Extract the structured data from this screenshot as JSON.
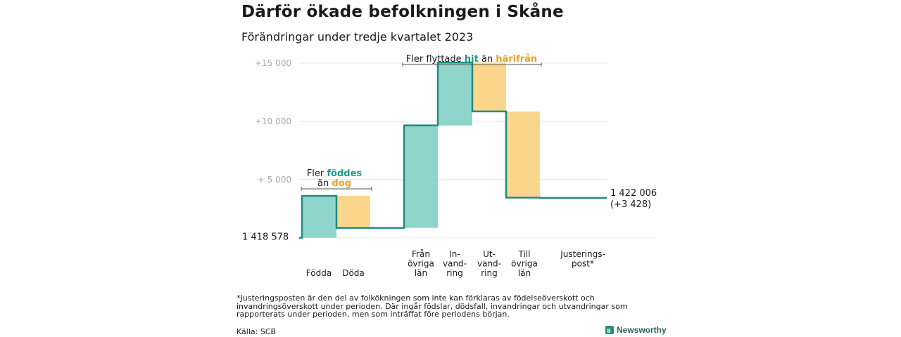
{
  "title": "Därför ökade befolkningen i Skåne",
  "subtitle": "Förändringar under tredje kvartalet 2023",
  "chart_data": {
    "type": "waterfall",
    "start_value": 1418578,
    "start_label": "1  418   578",
    "end_label": "1 422 006",
    "end_change_label": "(+3 428)",
    "y_ticks": [
      {
        "value": 5000,
        "label": "+  5  000"
      },
      {
        "value": 10000,
        "label": "+10   000"
      },
      {
        "value": 15000,
        "label": "+15   000"
      }
    ],
    "ylim": [
      -800,
      15600
    ],
    "steps": [
      {
        "label_lines": [
          "Födda"
        ],
        "delta": 3600,
        "kind": "inflow"
      },
      {
        "label_lines": [
          "Döda"
        ],
        "delta": -2750,
        "kind": "outflow"
      },
      {
        "label_lines": [
          "Från",
          "övriga",
          "län"
        ],
        "delta": 8800,
        "kind": "inflow"
      },
      {
        "label_lines": [
          "In-",
          "vand-",
          "ring"
        ],
        "delta": 5400,
        "kind": "inflow"
      },
      {
        "label_lines": [
          "Ut-",
          "vand-",
          "ring"
        ],
        "delta": -4200,
        "kind": "outflow"
      },
      {
        "label_lines": [
          "Till",
          "övriga",
          "län"
        ],
        "delta": -7400,
        "kind": "outflow"
      },
      {
        "label_lines": [
          "Justerings-",
          "post*"
        ],
        "delta": -22,
        "kind": "adjustment"
      }
    ],
    "annotations": {
      "births": {
        "prefix": "Fler ",
        "hl1": "föddes",
        "mid": "än ",
        "hl2": "dog"
      },
      "migration": {
        "prefix": "Fler flyttade ",
        "hl1": "hit",
        "mid": "  än ",
        "hl2": "härifrån"
      }
    },
    "colors": {
      "inflow_fill": "#8fd5cc",
      "outflow_fill": "#fad68c",
      "line": "#1e8c7e",
      "hl_green": "#1e9a88",
      "hl_orange": "#f0a020",
      "grid": "#e3e3e3",
      "tick_text": "#aaaaaa"
    }
  },
  "footnote": "*Justeringsposten är den del av folkökningen som inte kan förklaras av födelseöverskott och invandringsöverskott under perioden. Där ingår födslar, dödsfall, invandringar och utvandringar som rapporterats under perioden, men som inträffat före periodens början.",
  "source": "Källa: SCB",
  "brand": "Newsworthy",
  "brand_icon": "bar-chart-icon"
}
